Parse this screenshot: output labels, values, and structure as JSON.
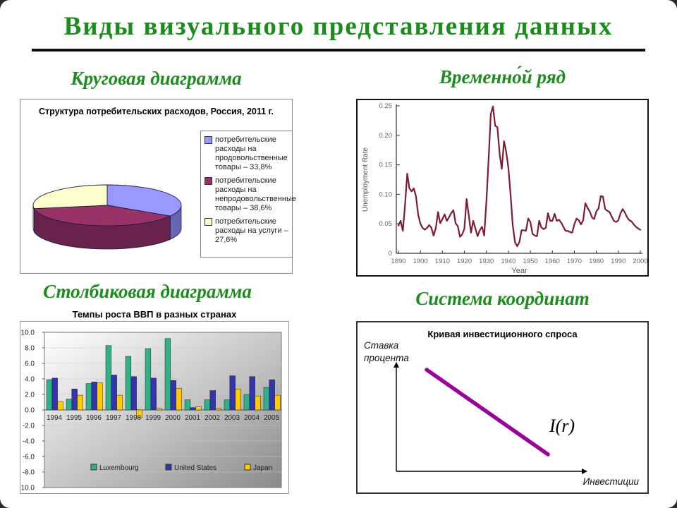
{
  "title": "Виды визуального представления данных",
  "accent_green": "#1e8b1e",
  "sections": {
    "pie": {
      "heading": "Круговая диаграмма"
    },
    "ts": {
      "heading": "Временно́й ряд"
    },
    "bar": {
      "heading": "Столбиковая диаграмма"
    },
    "coord": {
      "heading": "Система координат"
    }
  },
  "chart_data": [
    {
      "type": "pie",
      "title": "Структура потребительских расходов, Россия, 2011 г.",
      "labels": [
        "потребительские расходы на продовольственные товары – 33,8%",
        "потребительские расходы на непродовольственные товары – 38,6%",
        "потребительские расходы на услуги – 27,6%"
      ],
      "values": [
        33.8,
        38.6,
        27.6
      ],
      "colors": [
        "#9999FF",
        "#993366",
        "#FFFFCC"
      ],
      "side_colors": [
        "#6666b3",
        "#69224a",
        "#b8b88c"
      ],
      "effect": "3d",
      "legend_position": "right"
    },
    {
      "type": "line",
      "title": "",
      "xlabel": "Year",
      "ylabel": "Unemployment Rate",
      "x_start": 1890,
      "x_end": 2000,
      "x_tick_step": 10,
      "ylim": [
        0,
        0.25
      ],
      "ytick_labels": [
        "0",
        "0.05",
        "0.10",
        "0.15",
        "0.20",
        "0.25"
      ],
      "line_color": "#7d1c35",
      "values": [
        0.047,
        0.055,
        0.038,
        0.082,
        0.135,
        0.11,
        0.105,
        0.11,
        0.096,
        0.065,
        0.05,
        0.043,
        0.04,
        0.043,
        0.048,
        0.043,
        0.03,
        0.043,
        0.07,
        0.051,
        0.058,
        0.066,
        0.055,
        0.061,
        0.068,
        0.073,
        0.051,
        0.046,
        0.028,
        0.032,
        0.042,
        0.092,
        0.064,
        0.035,
        0.055,
        0.042,
        0.029,
        0.039,
        0.045,
        0.03,
        0.088,
        0.159,
        0.236,
        0.249,
        0.216,
        0.214,
        0.169,
        0.143,
        0.19,
        0.172,
        0.145,
        0.099,
        0.047,
        0.019,
        0.012,
        0.019,
        0.039,
        0.039,
        0.038,
        0.059,
        0.053,
        0.033,
        0.03,
        0.029,
        0.055,
        0.044,
        0.041,
        0.043,
        0.068,
        0.055,
        0.055,
        0.067,
        0.055,
        0.057,
        0.052,
        0.045,
        0.038,
        0.038,
        0.036,
        0.035,
        0.049,
        0.059,
        0.056,
        0.049,
        0.056,
        0.085,
        0.077,
        0.071,
        0.061,
        0.058,
        0.071,
        0.076,
        0.097,
        0.096,
        0.075,
        0.072,
        0.07,
        0.062,
        0.055,
        0.053,
        0.056,
        0.068,
        0.075,
        0.069,
        0.061,
        0.056,
        0.054,
        0.049,
        0.045,
        0.042,
        0.04
      ]
    },
    {
      "type": "bar",
      "title": "Темпы роста ВВП в разных странах",
      "categories": [
        "1994",
        "1995",
        "1996",
        "1997",
        "1998",
        "1999",
        "2000",
        "2001",
        "2002",
        "2003",
        "2004",
        "2005"
      ],
      "series": [
        {
          "name": "Luxembourg",
          "color": "#2fb189",
          "values": [
            3.9,
            1.4,
            3.4,
            8.3,
            6.9,
            7.9,
            9.2,
            1.3,
            1.3,
            1.3,
            2.0,
            2.9
          ]
        },
        {
          "name": "United States",
          "color": "#3434ac",
          "values": [
            4.1,
            2.7,
            3.6,
            4.5,
            4.3,
            4.1,
            3.8,
            0.3,
            2.5,
            4.4,
            4.3,
            3.9
          ]
        },
        {
          "name": "Japan",
          "color": "#ffcc00",
          "values": [
            1.1,
            1.9,
            3.5,
            1.9,
            -1.0,
            0.2,
            2.8,
            0.4,
            0.2,
            2.7,
            1.8,
            1.9
          ]
        }
      ],
      "ylim": [
        -10,
        10
      ],
      "ytick_step": 2,
      "grid": true,
      "legend_position": "bottom-inside"
    },
    {
      "type": "line-schematic",
      "title": "Кривая инвестиционного спроса",
      "ylabel": "Ставка процента",
      "xlabel": "Инвестиции",
      "curve_label": "I(r)",
      "curve_color": "#990099",
      "curve_direction": "downward-sloping"
    }
  ]
}
